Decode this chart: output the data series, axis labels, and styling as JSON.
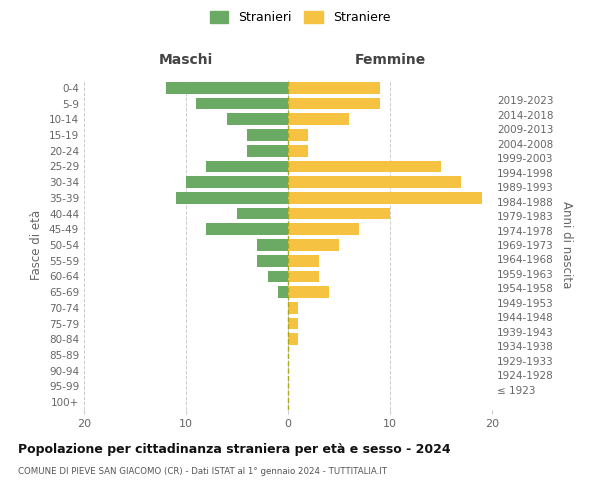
{
  "age_groups": [
    "100+",
    "95-99",
    "90-94",
    "85-89",
    "80-84",
    "75-79",
    "70-74",
    "65-69",
    "60-64",
    "55-59",
    "50-54",
    "45-49",
    "40-44",
    "35-39",
    "30-34",
    "25-29",
    "20-24",
    "15-19",
    "10-14",
    "5-9",
    "0-4"
  ],
  "birth_years": [
    "≤ 1923",
    "1924-1928",
    "1929-1933",
    "1934-1938",
    "1939-1943",
    "1944-1948",
    "1949-1953",
    "1954-1958",
    "1959-1963",
    "1964-1968",
    "1969-1973",
    "1974-1978",
    "1979-1983",
    "1984-1988",
    "1989-1993",
    "1994-1998",
    "1999-2003",
    "2004-2008",
    "2009-2013",
    "2014-2018",
    "2019-2023"
  ],
  "stranieri": [
    0,
    0,
    0,
    0,
    0,
    0,
    0,
    1,
    2,
    3,
    3,
    8,
    5,
    11,
    10,
    8,
    4,
    4,
    6,
    9,
    12
  ],
  "straniere": [
    0,
    0,
    0,
    0,
    1,
    1,
    1,
    4,
    3,
    3,
    5,
    7,
    10,
    19,
    17,
    15,
    2,
    2,
    6,
    9,
    9
  ],
  "male_color": "#6aaa64",
  "female_color": "#f5c242",
  "title": "Popolazione per cittadinanza straniera per età e sesso - 2024",
  "subtitle": "COMUNE DI PIEVE SAN GIACOMO (CR) - Dati ISTAT al 1° gennaio 2024 - TUTTITALIA.IT",
  "xlabel_left": "Maschi",
  "xlabel_right": "Femmine",
  "ylabel_left": "Fasce di età",
  "ylabel_right": "Anni di nascita",
  "legend_stranieri": "Stranieri",
  "legend_straniere": "Straniere",
  "xlim": 20,
  "background_color": "#ffffff",
  "grid_color": "#cccccc",
  "text_color": "#666666"
}
